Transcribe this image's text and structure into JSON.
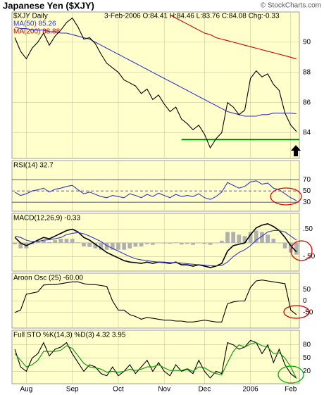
{
  "credit": "© StockCharts.com",
  "chart_data": [
    {
      "type": "line",
      "title": "Japanese Yen ($XJY)",
      "symbol": "$XJY Daily",
      "quote": "3-Feb-2006 O:84.41 H:84.46 L:83.76 C:84.08 Chg:-0.33",
      "ylim": [
        82.3,
        92
      ],
      "yticks": [
        84,
        86,
        88,
        90
      ],
      "support": 83.55,
      "support_color": "#008000",
      "series": [
        {
          "name": "MA(50) 85.26",
          "color": "#3333cc",
          "values": [
            91.0,
            90.9,
            90.9,
            90.8,
            90.8,
            90.8,
            90.7,
            90.7,
            90.6,
            90.6,
            90.5,
            90.4,
            90.3,
            90.2,
            90.0,
            89.8,
            89.6,
            89.4,
            89.2,
            89.0,
            88.8,
            88.6,
            88.4,
            88.2,
            88.0,
            87.8,
            87.6,
            87.4,
            87.2,
            87.0,
            86.8,
            86.6,
            86.4,
            86.2,
            86.0,
            85.8,
            85.6,
            85.4,
            85.3,
            85.2,
            85.1,
            85.1,
            85.1,
            85.2,
            85.2,
            85.3,
            85.3,
            85.3,
            85.3,
            85.26
          ]
        },
        {
          "name": "MA(200) 88.88",
          "color": "#cc0000",
          "values": [
            null,
            null,
            null,
            null,
            null,
            null,
            null,
            null,
            null,
            null,
            null,
            null,
            null,
            null,
            null,
            null,
            null,
            null,
            null,
            null,
            null,
            null,
            null,
            null,
            null,
            null,
            null,
            91.8,
            91.6,
            91.4,
            91.2,
            91.0,
            90.8,
            90.6,
            90.5,
            90.3,
            90.2,
            90.1,
            90.0,
            89.9,
            89.8,
            89.7,
            89.6,
            89.5,
            89.4,
            89.3,
            89.2,
            89.1,
            89.0,
            88.88
          ]
        },
        {
          "color": "#000000",
          "values": [
            90.3,
            89.4,
            88.9,
            89.6,
            90.0,
            90.6,
            89.8,
            90.4,
            90.8,
            91.3,
            91.6,
            91.0,
            90.2,
            90.3,
            89.9,
            89.2,
            88.6,
            88.3,
            88.0,
            87.5,
            87.3,
            87.1,
            86.6,
            86.9,
            86.2,
            86.5,
            85.9,
            85.4,
            85.7,
            84.9,
            84.6,
            84.2,
            84.5,
            83.9,
            83.0,
            83.6,
            84.0,
            86.0,
            85.7,
            85.2,
            85.5,
            87.6,
            88.1,
            87.7,
            87.9,
            87.2,
            86.8,
            85.3,
            84.5,
            84.08
          ]
        }
      ]
    },
    {
      "type": "line",
      "title": "RSI(14) 32.7",
      "ylim": [
        14,
        104
      ],
      "yticks": [
        30,
        50,
        70
      ],
      "series": [
        {
          "color": "#3333cc",
          "values": [
            48,
            42,
            45,
            50,
            52,
            55,
            48,
            53,
            55,
            58,
            60,
            52,
            45,
            48,
            44,
            40,
            38,
            42,
            40,
            38,
            45,
            42,
            38,
            44,
            40,
            46,
            42,
            38,
            44,
            40,
            42,
            40,
            45,
            38,
            35,
            40,
            48,
            65,
            60,
            55,
            58,
            66,
            68,
            62,
            64,
            55,
            52,
            45,
            38,
            32.7
          ]
        }
      ]
    },
    {
      "type": "macd",
      "title": "MACD(12,26,9) -0.33",
      "ylim": [
        -1.03,
        1.08
      ],
      "yticks": [
        {
          "value": 0.5,
          "label": ".50"
        },
        {
          "value": -0.5,
          "label": "-.50"
        }
      ],
      "histogram_color": "#b0b0b0",
      "histogram": [
        -0.05,
        -0.2,
        -0.2,
        -0.05,
        0.05,
        0.1,
        0.03,
        0.1,
        0.15,
        0.15,
        0.15,
        0.02,
        -0.13,
        -0.15,
        -0.2,
        -0.25,
        -0.25,
        -0.25,
        -0.25,
        -0.25,
        -0.2,
        -0.14,
        -0.13,
        -0.05,
        -0.07,
        0.0,
        -0.02,
        -0.03,
        0.02,
        -0.06,
        -0.04,
        -0.07,
        0.0,
        -0.04,
        -0.07,
        -0.01,
        0.08,
        0.4,
        0.4,
        0.3,
        0.25,
        0.4,
        0.45,
        0.4,
        0.3,
        0.15,
        0.0,
        -0.2,
        -0.35,
        -0.43
      ],
      "series": [
        {
          "color": "#000000",
          "values": [
            0.2,
            0.0,
            -0.1,
            0.0,
            0.1,
            0.2,
            0.15,
            0.25,
            0.35,
            0.45,
            0.5,
            0.4,
            0.2,
            0.1,
            -0.05,
            -0.2,
            -0.35,
            -0.45,
            -0.55,
            -0.65,
            -0.7,
            -0.72,
            -0.75,
            -0.7,
            -0.75,
            -0.7,
            -0.72,
            -0.75,
            -0.7,
            -0.8,
            -0.8,
            -0.85,
            -0.8,
            -0.85,
            -0.9,
            -0.85,
            -0.75,
            -0.3,
            -0.1,
            -0.05,
            0.0,
            0.3,
            0.55,
            0.65,
            0.7,
            0.6,
            0.45,
            0.2,
            -0.1,
            -0.33
          ]
        },
        {
          "color": "#3333cc",
          "values": [
            0.25,
            0.2,
            0.1,
            0.05,
            0.05,
            0.1,
            0.12,
            0.15,
            0.2,
            0.3,
            0.35,
            0.38,
            0.33,
            0.25,
            0.15,
            0.05,
            -0.1,
            -0.2,
            -0.3,
            -0.4,
            -0.5,
            -0.58,
            -0.62,
            -0.65,
            -0.68,
            -0.7,
            -0.7,
            -0.72,
            -0.72,
            -0.74,
            -0.76,
            -0.78,
            -0.8,
            -0.81,
            -0.83,
            -0.84,
            -0.83,
            -0.7,
            -0.5,
            -0.35,
            -0.25,
            -0.1,
            0.1,
            0.25,
            0.4,
            0.45,
            0.45,
            0.4,
            0.25,
            0.1
          ]
        }
      ]
    },
    {
      "type": "line",
      "title": "Aroon Osc (25) -60.00",
      "ylim": [
        -119,
        122
      ],
      "yticks": [
        50,
        0,
        -50
      ],
      "series": [
        {
          "color": "#000000",
          "values": [
            -50,
            -40,
            30,
            35,
            40,
            70,
            72,
            72,
            76,
            80,
            84,
            84,
            76,
            72,
            72,
            68,
            64,
            0,
            -40,
            -40,
            -60,
            -68,
            -80,
            -72,
            -76,
            -80,
            -84,
            -84,
            -88,
            -88,
            -92,
            -92,
            -88,
            -84,
            -88,
            -92,
            -92,
            -12,
            -4,
            0,
            0,
            60,
            88,
            92,
            88,
            84,
            80,
            76,
            -40,
            -60
          ]
        }
      ]
    },
    {
      "type": "line",
      "title": "Full STO %K(14,3) %D(3) 4.32 3.95",
      "ylim": [
        -8,
        113
      ],
      "yticks": [
        20,
        50,
        80
      ],
      "categories": [
        null,
        null,
        "Aug",
        null,
        null,
        null,
        null,
        null,
        null,
        null,
        "Sep",
        null,
        null,
        null,
        null,
        null,
        null,
        null,
        "Oct",
        null,
        null,
        null,
        null,
        null,
        null,
        null,
        "Nov",
        null,
        null,
        null,
        null,
        null,
        null,
        "Dec",
        null,
        null,
        null,
        null,
        null,
        null,
        null,
        "2006",
        null,
        null,
        null,
        null,
        null,
        null,
        "Feb",
        null
      ],
      "series": [
        {
          "color": "#000000",
          "values": [
            70,
            30,
            20,
            50,
            60,
            85,
            55,
            70,
            75,
            85,
            60,
            40,
            20,
            35,
            30,
            15,
            10,
            30,
            10,
            20,
            35,
            15,
            30,
            45,
            20,
            40,
            20,
            10,
            35,
            20,
            25,
            15,
            45,
            20,
            5,
            20,
            15,
            85,
            80,
            70,
            75,
            90,
            85,
            60,
            80,
            40,
            70,
            35,
            15,
            4.32
          ]
        },
        {
          "color": "#009900",
          "values": [
            60,
            45,
            30,
            35,
            45,
            65,
            65,
            65,
            68,
            78,
            72,
            55,
            38,
            30,
            28,
            25,
            18,
            20,
            18,
            20,
            25,
            22,
            25,
            30,
            30,
            35,
            28,
            22,
            22,
            22,
            26,
            20,
            30,
            28,
            20,
            15,
            12,
            40,
            65,
            80,
            75,
            82,
            85,
            78,
            75,
            60,
            62,
            50,
            30,
            3.95
          ]
        }
      ]
    }
  ]
}
